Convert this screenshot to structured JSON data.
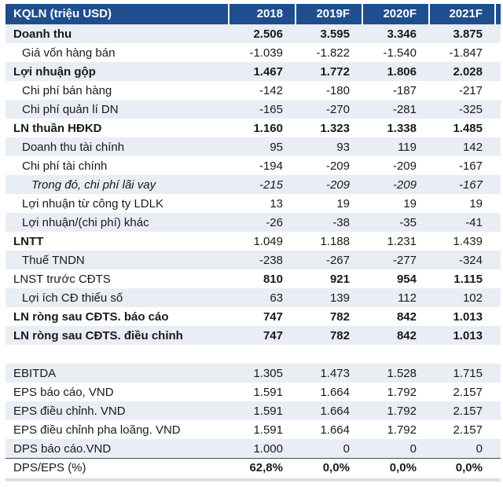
{
  "table": {
    "header": {
      "label": "KQLN (triệu USD)",
      "years": [
        "2018",
        "2019F",
        "2020F",
        "2021F"
      ]
    },
    "colors": {
      "header_bg": "#1F4E8E",
      "header_text": "#FFFFFF",
      "stripe_bg": "#E9EDF4",
      "text": "#1A1A1A",
      "divider_line": "#4A4A4A",
      "bottom_stripe": "#D9E0EA"
    },
    "rows": [
      {
        "label": "Doanh thu",
        "values": [
          "2.506",
          "3.595",
          "3.346",
          "3.875"
        ],
        "bold_label": true,
        "bold_values": true,
        "indent": 0,
        "shaded": true
      },
      {
        "label": "Giá vốn hàng bán",
        "values": [
          "-1.039",
          "-1.822",
          "-1.540",
          "-1.847"
        ],
        "indent": 1,
        "shaded": false
      },
      {
        "label": "Lợi nhuận gộp",
        "values": [
          "1.467",
          "1.772",
          "1.806",
          "2.028"
        ],
        "bold_label": true,
        "bold_values": true,
        "indent": 0,
        "shaded": true
      },
      {
        "label": "Chi phí bán hàng",
        "values": [
          "-142",
          "-180",
          "-187",
          "-217"
        ],
        "indent": 1,
        "shaded": false
      },
      {
        "label": "Chi phí quản lí DN",
        "values": [
          "-165",
          "-270",
          "-281",
          "-325"
        ],
        "indent": 1,
        "shaded": true
      },
      {
        "label": "LN thuần HĐKD",
        "values": [
          "1.160",
          "1.323",
          "1.338",
          "1.485"
        ],
        "bold_label": true,
        "bold_values": true,
        "indent": 0,
        "shaded": false
      },
      {
        "label": "Doanh thu tài chính",
        "values": [
          "95",
          "93",
          "119",
          "142"
        ],
        "indent": 1,
        "shaded": true
      },
      {
        "label": "Chi phí tài chính",
        "values": [
          "-194",
          "-209",
          "-209",
          "-167"
        ],
        "indent": 1,
        "shaded": false
      },
      {
        "label": "Trong đó, chi phí lãi vay",
        "values": [
          "-215",
          "-209",
          "-209",
          "-167"
        ],
        "indent": 2,
        "italic": true,
        "shaded": true
      },
      {
        "label": "Lợi nhuận từ công ty LDLK",
        "values": [
          "13",
          "19",
          "19",
          "19"
        ],
        "indent": 1,
        "shaded": false
      },
      {
        "label": "Lợi nhuận/(chi phí) khác",
        "values": [
          "-26",
          "-38",
          "-35",
          "-41"
        ],
        "indent": 1,
        "shaded": true
      },
      {
        "label": "LNTT",
        "values": [
          "1.049",
          "1.188",
          "1.231",
          "1.439"
        ],
        "bold_label": true,
        "indent": 0,
        "shaded": false
      },
      {
        "label": "Thuế TNDN",
        "values": [
          "-238",
          "-267",
          "-277",
          "-324"
        ],
        "indent": 1,
        "shaded": true
      },
      {
        "label": "LNST trước CĐTS",
        "values": [
          "810",
          "921",
          "954",
          "1.115"
        ],
        "bold_values": true,
        "indent": 0,
        "shaded": false
      },
      {
        "label": "Lợi ích CĐ thiểu số",
        "values": [
          "63",
          "139",
          "112",
          "102"
        ],
        "indent": 1,
        "shaded": true
      },
      {
        "label": "LN ròng sau CĐTS. báo cáo",
        "values": [
          "747",
          "782",
          "842",
          "1.013"
        ],
        "bold_label": true,
        "bold_values": true,
        "indent": 0,
        "shaded": false
      },
      {
        "label": "LN ròng sau CĐTS. điều chỉnh",
        "values": [
          "747",
          "782",
          "842",
          "1.013"
        ],
        "bold_label": true,
        "bold_values": true,
        "indent": 0,
        "shaded": true
      },
      {
        "spacer": true
      },
      {
        "label": "EBITDA",
        "values": [
          "1.305",
          "1.473",
          "1.528",
          "1.715"
        ],
        "indent": 0,
        "shaded": true
      },
      {
        "label": "EPS báo cáo, VND",
        "values": [
          "1.591",
          "1.664",
          "1.792",
          "2.157"
        ],
        "indent": 0,
        "shaded": false
      },
      {
        "label": "EPS điều chỉnh. VND",
        "values": [
          "1.591",
          "1.664",
          "1.792",
          "2.157"
        ],
        "indent": 0,
        "shaded": true
      },
      {
        "label": "EPS điều chỉnh pha loãng. VND",
        "values": [
          "1.591",
          "1.664",
          "1.792",
          "2.157"
        ],
        "indent": 0,
        "shaded": false
      },
      {
        "label": "DPS báo cáo.VND",
        "values": [
          "1.000",
          "0",
          "0",
          "0"
        ],
        "indent": 0,
        "shaded": true
      },
      {
        "label": "DPS/EPS (%)",
        "values": [
          "62,8%",
          "0,0%",
          "0,0%",
          "0,0%"
        ],
        "bold_values": true,
        "indent": 0,
        "shaded": false,
        "top_border": true
      }
    ]
  }
}
